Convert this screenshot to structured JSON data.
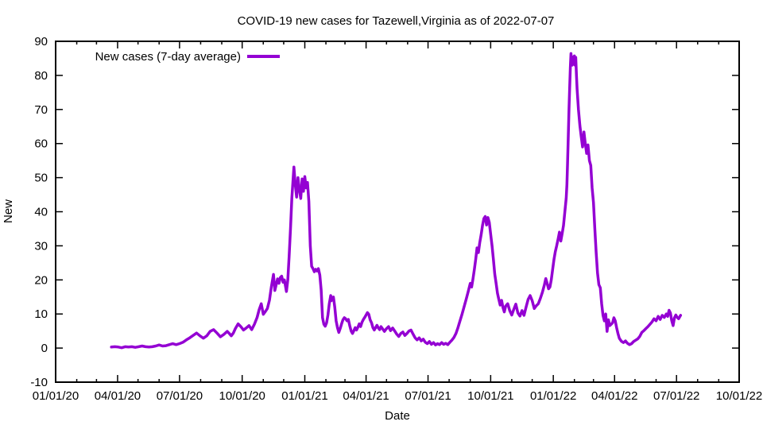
{
  "title": "COVID-19 new cases for Tazewell,Virginia as of 2022-07-07",
  "legend": {
    "label": "New cases (7-day average)",
    "color": "#9400d3"
  },
  "axes": {
    "x_label": "Date",
    "y_label": "New"
  },
  "chart_data": {
    "type": "line",
    "title": "COVID-19 new cases for Tazewell,Virginia as of 2022-07-07",
    "xlabel": "Date",
    "ylabel": "New",
    "ylim": [
      -10,
      90
    ],
    "grid": false,
    "legend_position": "top-left",
    "background": "#ffffff",
    "line_color": "#9400d3",
    "y_ticks": [
      -10,
      0,
      10,
      20,
      30,
      40,
      50,
      60,
      70,
      80,
      90
    ],
    "x_range_days": [
      0,
      1004
    ],
    "x_ticks": [
      {
        "label": "01/01/20",
        "day": 0
      },
      {
        "label": "04/01/20",
        "day": 91
      },
      {
        "label": "07/01/20",
        "day": 182
      },
      {
        "label": "10/01/20",
        "day": 274
      },
      {
        "label": "01/01/21",
        "day": 366
      },
      {
        "label": "04/01/21",
        "day": 456
      },
      {
        "label": "07/01/21",
        "day": 547
      },
      {
        "label": "10/01/21",
        "day": 639
      },
      {
        "label": "01/01/22",
        "day": 731
      },
      {
        "label": "04/01/22",
        "day": 821
      },
      {
        "label": "07/01/22",
        "day": 912
      },
      {
        "label": "10/01/22",
        "day": 1004
      }
    ],
    "x_minor_tick_days": [
      31,
      60,
      121,
      152,
      213,
      244,
      305,
      335,
      397,
      425,
      486,
      517,
      578,
      609,
      670,
      700,
      762,
      790,
      851,
      882,
      943,
      974
    ],
    "series": [
      {
        "name": "New cases (7-day average)",
        "color": "#9400d3",
        "x_days_since_2020_01_01": [
          82,
          87,
          92,
          97,
          102,
          107,
          112,
          117,
          122,
          127,
          132,
          137,
          142,
          147,
          152,
          157,
          162,
          167,
          172,
          177,
          182,
          187,
          192,
          197,
          202,
          207,
          212,
          217,
          222,
          227,
          232,
          237,
          242,
          247,
          252,
          255,
          258,
          261,
          264,
          268,
          272,
          276,
          280,
          284,
          288,
          292,
          296,
          299,
          302,
          305,
          308,
          311,
          314,
          317,
          320,
          322,
          324,
          326,
          328,
          330,
          332,
          334,
          336,
          339,
          341,
          343,
          345,
          347,
          349,
          350,
          352,
          354,
          356,
          358,
          360,
          362,
          364,
          366,
          368,
          370,
          372,
          374,
          376,
          378,
          380,
          382,
          384,
          386,
          388,
          390,
          392,
          394,
          396,
          398,
          400,
          402,
          404,
          405,
          406,
          408,
          410,
          412,
          414,
          416,
          418,
          420,
          422,
          424,
          426,
          428,
          430,
          432,
          434,
          436,
          438,
          440,
          442,
          444,
          446,
          448,
          450,
          452,
          454,
          456,
          458,
          460,
          462,
          464,
          466,
          468,
          470,
          472,
          474,
          476,
          478,
          480,
          483,
          486,
          489,
          492,
          495,
          498,
          501,
          504,
          507,
          510,
          513,
          516,
          519,
          522,
          525,
          528,
          531,
          534,
          537,
          540,
          543,
          546,
          549,
          552,
          555,
          558,
          561,
          564,
          567,
          570,
          573,
          576,
          579,
          582,
          585,
          588,
          591,
          594,
          597,
          600,
          603,
          606,
          609,
          611,
          613,
          615,
          617,
          619,
          621,
          623,
          625,
          627,
          629,
          631,
          633,
          635,
          637,
          639,
          641,
          643,
          645,
          647,
          649,
          651,
          653,
          655,
          657,
          659,
          661,
          664,
          667,
          670,
          673,
          676,
          679,
          682,
          685,
          688,
          691,
          694,
          697,
          700,
          703,
          706,
          709,
          712,
          715,
          718,
          720,
          722,
          724,
          726,
          728,
          730,
          732,
          734,
          736,
          738,
          740,
          742,
          744,
          746,
          748,
          750,
          751,
          752,
          753,
          754,
          755,
          756,
          757,
          758,
          759,
          760,
          761,
          762,
          763,
          764,
          765,
          766,
          768,
          770,
          772,
          774,
          776,
          778,
          780,
          782,
          784,
          786,
          788,
          790,
          792,
          794,
          796,
          798,
          800,
          802,
          804,
          806,
          808,
          810,
          812,
          814,
          816,
          818,
          820,
          822,
          824,
          826,
          828,
          831,
          834,
          837,
          840,
          843,
          846,
          849,
          852,
          855,
          858,
          861,
          864,
          867,
          870,
          873,
          876,
          879,
          882,
          885,
          888,
          891,
          894,
          897,
          899,
          901,
          903,
          905,
          907,
          909,
          911,
          913,
          915,
          917,
          918
        ],
        "values": [
          0.3,
          0.4,
          0.3,
          0.1,
          0.4,
          0.3,
          0.4,
          0.2,
          0.4,
          0.6,
          0.4,
          0.3,
          0.4,
          0.6,
          0.9,
          0.6,
          0.7,
          1.0,
          1.3,
          1.0,
          1.3,
          1.7,
          2.4,
          3.0,
          3.7,
          4.4,
          3.6,
          2.9,
          3.6,
          4.9,
          5.4,
          4.4,
          3.3,
          4.0,
          4.9,
          4.3,
          3.6,
          4.4,
          5.7,
          7.1,
          6.3,
          5.3,
          5.9,
          6.6,
          5.4,
          7.0,
          9.0,
          11.3,
          13.0,
          9.9,
          10.7,
          11.6,
          14.0,
          18.1,
          21.6,
          16.9,
          18.6,
          20.3,
          19.0,
          20.7,
          21.1,
          19.3,
          20.0,
          16.6,
          20.0,
          27.0,
          35.0,
          44.0,
          50.0,
          53.1,
          48.0,
          44.3,
          50.0,
          46.4,
          43.9,
          49.6,
          46.0,
          50.3,
          47.0,
          48.6,
          43.0,
          30.0,
          24.0,
          23.3,
          22.4,
          23.1,
          22.6,
          23.3,
          21.4,
          17.0,
          8.9,
          7.0,
          6.4,
          7.4,
          9.7,
          13.0,
          15.4,
          13.9,
          14.7,
          15.0,
          12.0,
          8.0,
          6.0,
          4.6,
          5.7,
          7.1,
          8.3,
          8.9,
          8.6,
          8.0,
          8.4,
          6.6,
          5.0,
          4.3,
          5.1,
          6.0,
          5.3,
          6.1,
          7.1,
          6.3,
          7.6,
          8.4,
          9.0,
          9.7,
          10.4,
          9.9,
          8.3,
          7.4,
          6.0,
          5.3,
          6.0,
          6.7,
          5.9,
          5.4,
          6.3,
          5.7,
          4.9,
          5.7,
          6.3,
          5.1,
          5.9,
          5.0,
          4.1,
          3.4,
          4.3,
          4.7,
          3.7,
          4.3,
          5.0,
          5.3,
          4.1,
          3.0,
          2.4,
          3.0,
          2.1,
          2.6,
          1.7,
          1.3,
          1.9,
          1.1,
          1.6,
          0.9,
          1.3,
          1.0,
          1.6,
          1.1,
          1.4,
          1.0,
          1.7,
          2.3,
          3.1,
          4.3,
          6.0,
          8.0,
          10.0,
          12.1,
          14.3,
          16.6,
          19.0,
          17.9,
          20.3,
          23.0,
          26.0,
          29.4,
          28.0,
          30.9,
          33.3,
          36.0,
          38.0,
          38.6,
          36.1,
          38.3,
          36.9,
          33.3,
          30.0,
          26.0,
          21.7,
          19.0,
          16.1,
          14.3,
          12.6,
          14.0,
          11.9,
          10.6,
          12.3,
          13.0,
          11.0,
          9.7,
          11.4,
          12.9,
          10.3,
          9.4,
          11.0,
          9.6,
          12.0,
          14.3,
          15.4,
          13.9,
          11.6,
          12.4,
          13.0,
          14.6,
          16.4,
          18.6,
          20.4,
          19.0,
          17.4,
          17.9,
          20.0,
          23.0,
          26.0,
          28.3,
          30.0,
          32.0,
          34.0,
          31.4,
          33.6,
          36.0,
          40.0,
          44.0,
          48.0,
          54.3,
          62.0,
          70.0,
          76.0,
          82.3,
          86.4,
          84.0,
          83.0,
          85.4,
          84.3,
          85.7,
          83.0,
          85.3,
          80.0,
          76.0,
          70.0,
          65.3,
          62.0,
          59.0,
          63.4,
          60.0,
          57.1,
          59.6,
          55.0,
          53.6,
          47.0,
          42.7,
          35.0,
          28.0,
          22.0,
          18.6,
          17.7,
          13.0,
          9.6,
          8.0,
          10.0,
          4.9,
          8.3,
          6.6,
          7.0,
          7.4,
          8.9,
          8.0,
          6.0,
          4.3,
          2.9,
          2.0,
          1.6,
          2.1,
          1.4,
          1.0,
          1.3,
          1.9,
          2.3,
          2.7,
          3.4,
          4.6,
          5.1,
          5.7,
          6.3,
          7.0,
          7.7,
          8.6,
          8.0,
          9.3,
          8.4,
          9.6,
          9.0,
          10.0,
          9.3,
          11.1,
          10.3,
          8.0,
          6.6,
          8.9,
          9.7,
          9.0,
          8.6,
          9.3,
          9.6
        ]
      }
    ]
  }
}
